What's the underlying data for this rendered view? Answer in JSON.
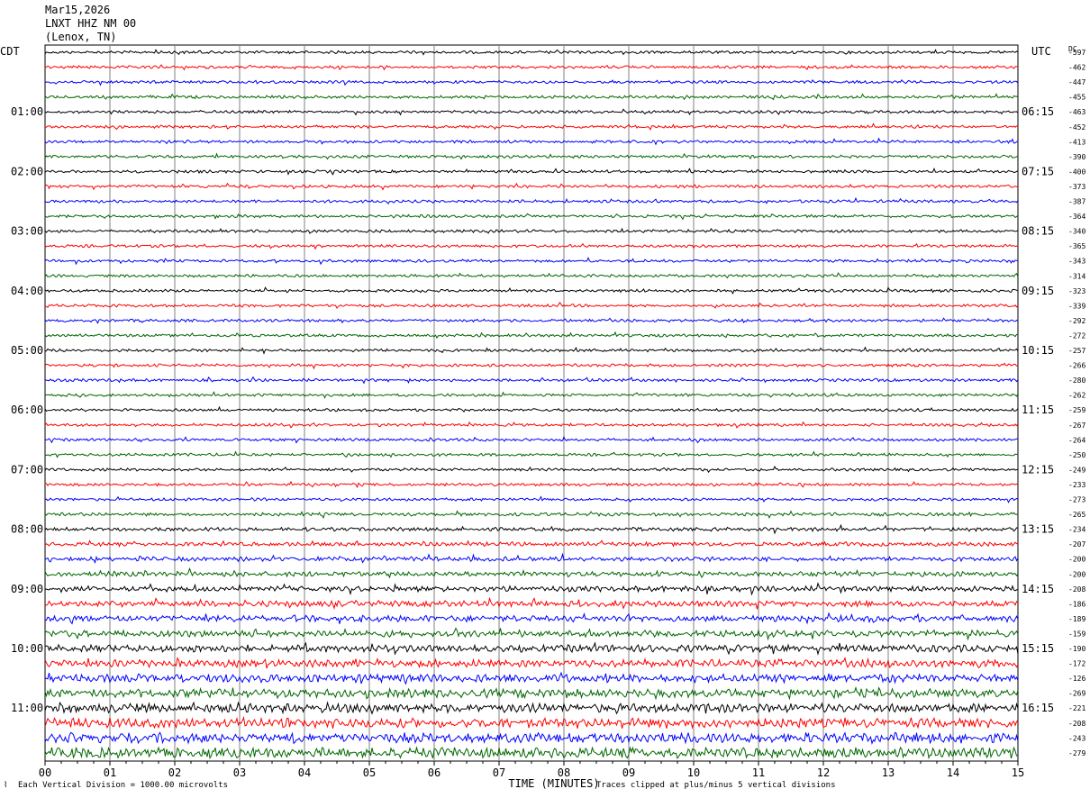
{
  "header": {
    "date": "Mar15,2026",
    "station": "LNXT HHZ NM 00",
    "location": "(Lenox, TN)"
  },
  "left_tz": "CDT",
  "right_tz": "UTC",
  "dc_label": "DC",
  "footer": {
    "scale_note": "Each Vertical Division = 1000.00 microvolts",
    "clip_note": "Traces clipped at plus/minus 5 vertical divisions"
  },
  "chart_data": {
    "type": "line",
    "title": "",
    "xlabel": "TIME (MINUTES)",
    "ylabel": "",
    "xlim": [
      0,
      15
    ],
    "x_ticks": [
      "00",
      "01",
      "02",
      "03",
      "04",
      "05",
      "06",
      "07",
      "08",
      "09",
      "10",
      "11",
      "12",
      "13",
      "14",
      "15"
    ],
    "left_hour_labels": [
      "01:00",
      "02:00",
      "03:00",
      "04:00",
      "05:00",
      "06:00",
      "07:00",
      "08:00",
      "09:00",
      "10:00",
      "11:00"
    ],
    "right_hour_labels": [
      "06:15",
      "07:15",
      "08:15",
      "09:15",
      "10:15",
      "11:15",
      "12:15",
      "13:15",
      "14:15",
      "15:15",
      "16:15"
    ],
    "dc_offsets": [
      -597,
      -462,
      -447,
      -455,
      -463,
      -452,
      -413,
      -390,
      -400,
      -373,
      -387,
      -364,
      -340,
      -365,
      -343,
      -314,
      -323,
      -339,
      -292,
      -272,
      -257,
      -266,
      -280,
      -262,
      -259,
      -267,
      -264,
      -250,
      -249,
      -233,
      -273,
      -265,
      -234,
      -207,
      -200,
      -200,
      -208,
      -186,
      -189,
      -159,
      -190,
      -172,
      -126,
      -269,
      -221,
      -208,
      -243,
      -279
    ],
    "trace_colors": [
      "#000000",
      "#ff0000",
      "#0000ff",
      "#006600"
    ],
    "traces_count": 48,
    "minutes_per_trace": 15
  }
}
